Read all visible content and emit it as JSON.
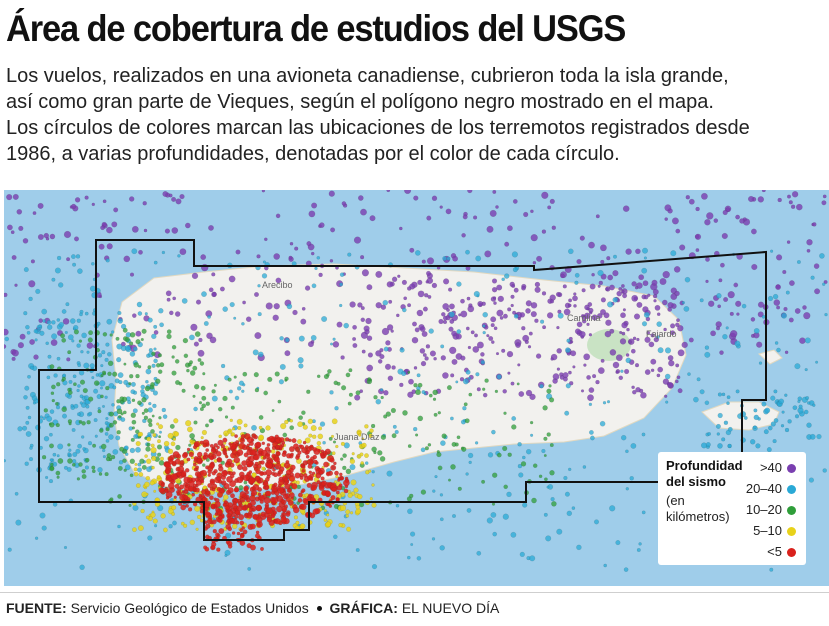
{
  "headline": "Área de cobertura de estudios del USGS",
  "subhead_lines": [
    "Los vuelos, realizados en una avioneta canadiense, cubrieron toda la isla grande,",
    "así como gran parte de Vieques, según el polígono negro mostrado en el mapa.",
    "Los círculos de colores marcan las ubicaciones de los terremotos registrados desde",
    "1986, a varias profundidades, denotadas por el color de cada círculo."
  ],
  "map": {
    "place_labels": [
      "Arecibo",
      "Carolina",
      "Fajardo",
      "Juana Díaz"
    ],
    "colors": {
      "sea": "#9fcdea",
      "land": "#f2f1ee",
      "polygon": "#111111"
    }
  },
  "legend": {
    "title": "Profundidad del sismo",
    "unit_note": "(en kilómetros)",
    "items": [
      {
        "label": ">40",
        "color": "#7a3fb0"
      },
      {
        "label": "20–40",
        "color": "#2aa9d6"
      },
      {
        "label": "10–20",
        "color": "#2f9e3a"
      },
      {
        "label": "5–10",
        "color": "#e8d21a"
      },
      {
        "label": "<5",
        "color": "#d9211c"
      }
    ]
  },
  "footer": {
    "source_label": "FUENTE:",
    "source_text": "Servicio Geológico de Estados Unidos",
    "graphic_label": "GRÁFICA:",
    "graphic_text": "EL NUEVO DÍA"
  }
}
